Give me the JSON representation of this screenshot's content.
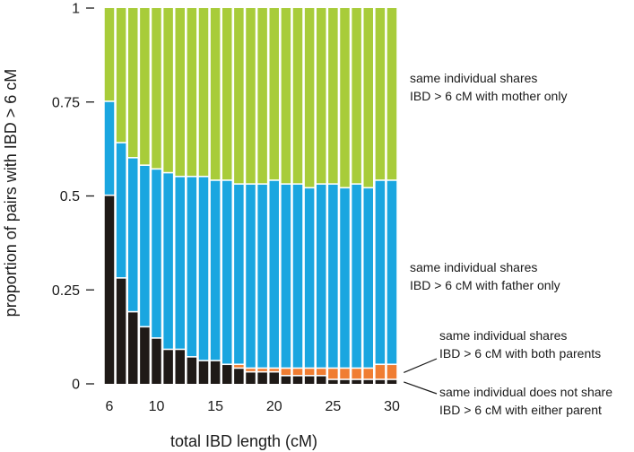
{
  "chart_data": {
    "type": "bar",
    "stacked": true,
    "xlabel": "total IBD length (cM)",
    "ylabel": "proportion of pairs with IBD > 6 cM",
    "ylim": [
      0,
      1
    ],
    "yticks": [
      {
        "value": 0,
        "label": "0"
      },
      {
        "value": 0.25,
        "label": "0.25"
      },
      {
        "value": 0.5,
        "label": "0.5"
      },
      {
        "value": 0.75,
        "label": "0.75"
      },
      {
        "value": 1,
        "label": "1"
      }
    ],
    "xticks": [
      {
        "value": 6,
        "label": "6"
      },
      {
        "value": 10,
        "label": "10"
      },
      {
        "value": 15,
        "label": "15"
      },
      {
        "value": 20,
        "label": "20"
      },
      {
        "value": 25,
        "label": "25"
      },
      {
        "value": 30,
        "label": "30"
      }
    ],
    "x": [
      6,
      7,
      8,
      9,
      10,
      11,
      12,
      13,
      14,
      15,
      16,
      17,
      18,
      19,
      20,
      21,
      22,
      23,
      24,
      25,
      26,
      27,
      28,
      29,
      30
    ],
    "series": [
      {
        "id": "neither",
        "name": "same individual does not share IBD > 6 cM with either parent",
        "color": "#1f1a17",
        "values": [
          0.5,
          0.28,
          0.19,
          0.15,
          0.12,
          0.09,
          0.09,
          0.07,
          0.06,
          0.06,
          0.05,
          0.04,
          0.03,
          0.03,
          0.03,
          0.02,
          0.02,
          0.02,
          0.02,
          0.01,
          0.01,
          0.01,
          0.01,
          0.01,
          0.01
        ]
      },
      {
        "id": "both",
        "name": "same individual shares IBD > 6 cM with both parents",
        "color": "#f07d32",
        "values": [
          0.0,
          0.0,
          0.0,
          0.0,
          0.0,
          0.0,
          0.0,
          0.0,
          0.0,
          0.0,
          0.0,
          0.01,
          0.01,
          0.01,
          0.01,
          0.02,
          0.02,
          0.02,
          0.02,
          0.03,
          0.03,
          0.03,
          0.03,
          0.04,
          0.04
        ]
      },
      {
        "id": "father",
        "name": "same individual shares IBD > 6 cM with father only",
        "color": "#1aa6e0",
        "values": [
          0.25,
          0.36,
          0.41,
          0.43,
          0.45,
          0.47,
          0.46,
          0.48,
          0.49,
          0.48,
          0.49,
          0.48,
          0.49,
          0.49,
          0.5,
          0.49,
          0.49,
          0.48,
          0.49,
          0.49,
          0.48,
          0.49,
          0.48,
          0.49,
          0.49
        ]
      },
      {
        "id": "mother",
        "name": "same individual shares IBD > 6 cM with mother only",
        "color": "#a8cc3a",
        "values": [
          0.25,
          0.36,
          0.4,
          0.42,
          0.43,
          0.44,
          0.45,
          0.45,
          0.45,
          0.46,
          0.46,
          0.47,
          0.47,
          0.47,
          0.46,
          0.47,
          0.47,
          0.48,
          0.47,
          0.47,
          0.48,
          0.47,
          0.48,
          0.46,
          0.46
        ]
      }
    ],
    "annotations": [
      {
        "series": "mother",
        "lines": [
          "same individual shares",
          "IBD > 6 cM with mother only"
        ]
      },
      {
        "series": "father",
        "lines": [
          "same individual shares",
          "IBD > 6 cM with father only"
        ]
      },
      {
        "series": "both",
        "lines": [
          "same individual shares",
          "IBD > 6 cM with both parents"
        ]
      },
      {
        "series": "neither",
        "lines": [
          "same individual does not share",
          "IBD > 6 cM with either parent"
        ]
      }
    ]
  }
}
